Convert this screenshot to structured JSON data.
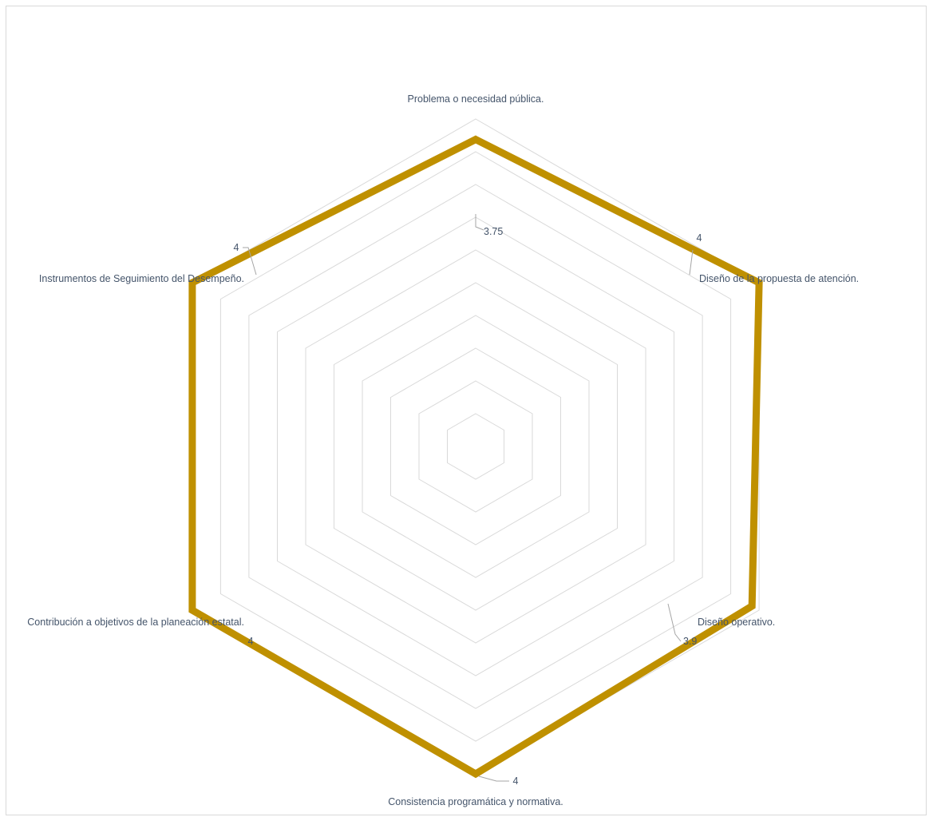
{
  "chart_data": {
    "type": "radar",
    "categories": [
      "Problema o necesidad pública.",
      "Diseño de la propuesta de atención.",
      "Diseño operativo.",
      "Consistencia programática y normativa.",
      "Contribución a objetivos de la planeación estatal.",
      "Instrumentos de Seguimiento del Desempeño."
    ],
    "values": [
      3.75,
      4,
      3.9,
      4,
      4,
      4
    ],
    "value_labels": [
      "3.75",
      "4",
      "3.9",
      "4",
      "4",
      "4"
    ],
    "rlim": [
      0,
      4
    ],
    "grid_steps": 10,
    "grid": true,
    "legend": "none",
    "colors": {
      "series": "#bf9000",
      "grid": "#d9d9d9",
      "text": "#44546a"
    }
  }
}
